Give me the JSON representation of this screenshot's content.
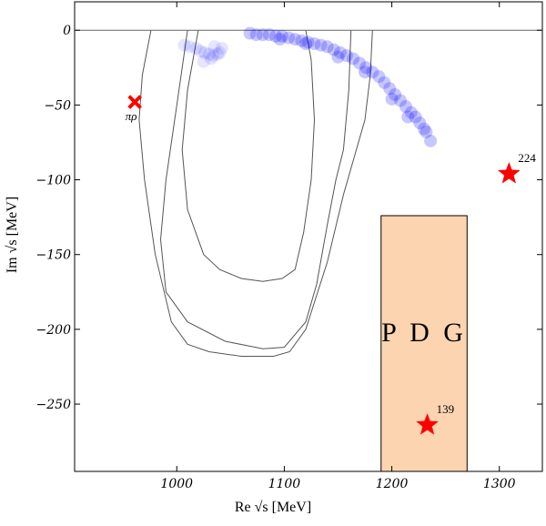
{
  "chart_data": {
    "type": "scatter",
    "xlabel": "Re √s [MeV]",
    "ylabel": "Im √s [MeV]",
    "xlim": [
      905,
      1340
    ],
    "ylim": [
      -295,
      19
    ],
    "xticks": [
      1000,
      1100,
      1200,
      1300
    ],
    "yticks": [
      0,
      -50,
      -100,
      -150,
      -200,
      -250
    ],
    "xtick_labels": [
      "1000",
      "1100",
      "1200",
      "1300"
    ],
    "ytick_labels": [
      "0",
      "−50",
      "−100",
      "−150",
      "−200",
      "−250"
    ],
    "reference_line_y": 0,
    "grid": false,
    "colors": {
      "points": "#0000ff",
      "stars": "#ff0000",
      "pdg_fill": "#fcd5b0",
      "contours": "#555555"
    },
    "pole_band": [
      [
        1007,
        -10
      ],
      [
        1012,
        -11
      ],
      [
        1018,
        -12
      ],
      [
        1022,
        -14
      ],
      [
        1026,
        -15
      ],
      [
        1030,
        -16
      ],
      [
        1034,
        -17
      ],
      [
        1038,
        -16
      ],
      [
        1025,
        -21
      ],
      [
        1032,
        -19
      ],
      [
        1040,
        -15
      ],
      [
        1042,
        -12
      ],
      [
        1035,
        -11
      ],
      [
        1068,
        -2
      ],
      [
        1074,
        -3
      ],
      [
        1080,
        -3
      ],
      [
        1086,
        -3
      ],
      [
        1092,
        -4
      ],
      [
        1098,
        -4
      ],
      [
        1104,
        -5
      ],
      [
        1110,
        -6
      ],
      [
        1116,
        -7
      ],
      [
        1122,
        -8
      ],
      [
        1128,
        -9
      ],
      [
        1134,
        -10
      ],
      [
        1140,
        -11
      ],
      [
        1146,
        -13
      ],
      [
        1152,
        -15
      ],
      [
        1158,
        -17
      ],
      [
        1164,
        -19
      ],
      [
        1170,
        -22
      ],
      [
        1176,
        -25
      ],
      [
        1182,
        -28
      ],
      [
        1188,
        -31
      ],
      [
        1193,
        -35
      ],
      [
        1198,
        -39
      ],
      [
        1203,
        -43
      ],
      [
        1208,
        -47
      ],
      [
        1213,
        -51
      ],
      [
        1218,
        -55
      ],
      [
        1222,
        -58
      ],
      [
        1226,
        -62
      ],
      [
        1230,
        -66
      ],
      [
        1232,
        -68
      ],
      [
        1236,
        -74
      ],
      [
        1096,
        -6
      ],
      [
        1120,
        -9
      ],
      [
        1150,
        -18
      ],
      [
        1175,
        -28
      ],
      [
        1200,
        -46
      ],
      [
        1215,
        -58
      ]
    ],
    "contours": [
      [
        [
          1010,
          0
        ],
        [
          1000,
          -50
        ],
        [
          990,
          -100
        ],
        [
          985,
          -140
        ],
        [
          990,
          -175
        ],
        [
          1010,
          -195
        ],
        [
          1045,
          -208
        ],
        [
          1080,
          -213
        ],
        [
          1100,
          -212
        ],
        [
          1120,
          -195
        ],
        [
          1130,
          -170
        ],
        [
          1140,
          -130
        ],
        [
          1148,
          -100
        ],
        [
          1155,
          -80
        ],
        [
          1160,
          -40
        ],
        [
          1162,
          0
        ]
      ],
      [
        [
          976,
          0
        ],
        [
          968,
          -30
        ],
        [
          965,
          -60
        ],
        [
          970,
          -100
        ],
        [
          980,
          -150
        ],
        [
          995,
          -195
        ],
        [
          1010,
          -210
        ],
        [
          1030,
          -215
        ],
        [
          1060,
          -218
        ],
        [
          1090,
          -218
        ],
        [
          1105,
          -215
        ],
        [
          1120,
          -200
        ],
        [
          1140,
          -155
        ],
        [
          1155,
          -110
        ],
        [
          1175,
          -60
        ],
        [
          1180,
          -30
        ],
        [
          1182,
          0
        ]
      ],
      [
        [
          1020,
          0
        ],
        [
          1010,
          -40
        ],
        [
          1005,
          -80
        ],
        [
          1010,
          -120
        ],
        [
          1025,
          -150
        ],
        [
          1040,
          -160
        ],
        [
          1060,
          -166
        ],
        [
          1080,
          -168
        ],
        [
          1098,
          -166
        ],
        [
          1110,
          -160
        ],
        [
          1118,
          -135
        ],
        [
          1125,
          -100
        ],
        [
          1128,
          -60
        ],
        [
          1125,
          -20
        ],
        [
          1120,
          0
        ]
      ]
    ],
    "stars": [
      {
        "x": 1309,
        "y": -96,
        "label": "224"
      },
      {
        "x": 1233,
        "y": -264,
        "label": "139"
      }
    ],
    "cross_marker": {
      "x": 961,
      "y": -48,
      "label": "πρ"
    },
    "pdg_box": {
      "x0": 1190,
      "x1": 1270,
      "y0": -124,
      "y1": -295,
      "label": "P D G"
    }
  }
}
